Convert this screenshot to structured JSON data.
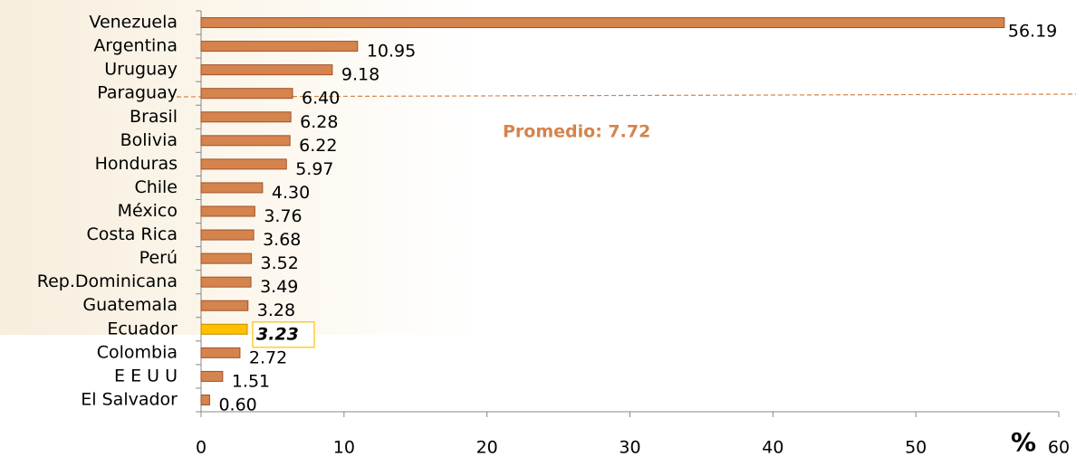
{
  "chart_data": {
    "type": "bar",
    "orientation": "horizontal",
    "categories": [
      "Venezuela",
      "Argentina",
      "Uruguay",
      "Paraguay",
      "Brasil",
      "Bolivia",
      "Honduras",
      "Chile",
      "México",
      "Costa Rica",
      "Perú",
      "Rep.Dominicana",
      "Guatemala",
      "Ecuador",
      "Colombia",
      "E E U U",
      "El Salvador"
    ],
    "values": [
      56.19,
      10.95,
      9.18,
      6.4,
      6.28,
      6.22,
      5.97,
      4.3,
      3.76,
      3.68,
      3.52,
      3.49,
      3.28,
      3.23,
      2.72,
      1.51,
      0.6
    ],
    "value_labels": [
      "56.19",
      "10.95",
      "9.18",
      "6.40",
      "6.28",
      "6.22",
      "5.97",
      "4.30",
      "3.76",
      "3.68",
      "3.52",
      "3.49",
      "3.28",
      "3.23",
      "2.72",
      "1.51",
      "0.60"
    ],
    "colors": [
      "#d4844c",
      "#d4844c",
      "#d4844c",
      "#d4844c",
      "#d4844c",
      "#d4844c",
      "#d4844c",
      "#d4844c",
      "#d4844c",
      "#d4844c",
      "#d4844c",
      "#d4844c",
      "#d4844c",
      "#ffc000",
      "#d4844c",
      "#d4844c",
      "#d4844c"
    ],
    "annotation": "Promedio: 7.72",
    "x_unit": "%",
    "xlim": [
      0,
      60
    ],
    "xticks": [
      0,
      10,
      20,
      30,
      40,
      50,
      60
    ]
  }
}
